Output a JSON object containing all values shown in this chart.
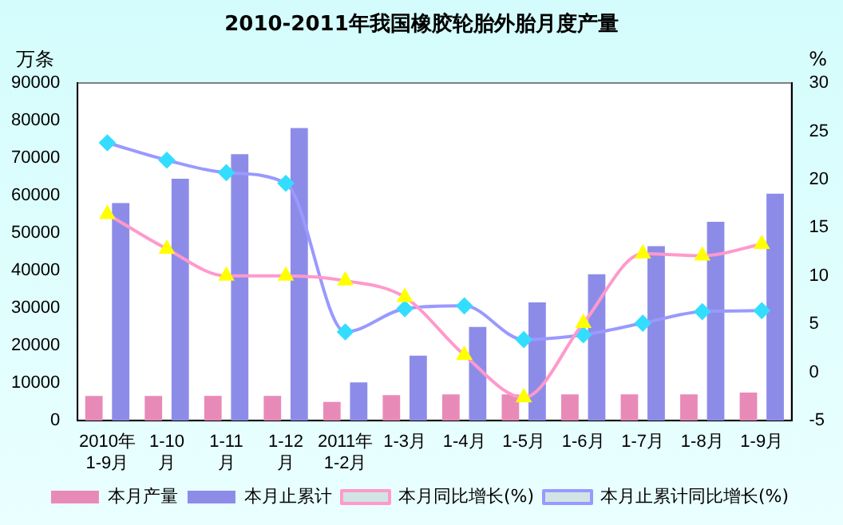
{
  "chart_data": {
    "type": "bar",
    "title": "2010-2011年我国橡胶轮胎外胎月度产量",
    "ylabel": "万条",
    "y2label": "%",
    "categories": [
      "2010年\n1-9月",
      "1-10\n月",
      "1-11\n月",
      "1-12\n月",
      "2011年\n1-2月",
      "1-3月",
      "1-4月",
      "1-5月",
      "1-6月",
      "1-7月",
      "1-8月",
      "1-9月"
    ],
    "series": [
      {
        "name": "本月产量",
        "color": "#e88ab8",
        "values": [
          6600,
          6600,
          6600,
          6600,
          5000,
          6800,
          7000,
          7000,
          7000,
          7000,
          7000,
          7500
        ]
      },
      {
        "name": "本月止累计",
        "color": "#8c8ce8",
        "values": [
          58000,
          64500,
          71000,
          78000,
          10200,
          17300,
          25000,
          31500,
          39000,
          46500,
          53000,
          60500
        ]
      },
      {
        "name": "本月同比增长(%)",
        "type": "line",
        "axis": "y2",
        "color": "#ff99cc",
        "marker": "triangle",
        "values": [
          16.4,
          12.8,
          10,
          10,
          9.5,
          7.8,
          1.8,
          -2.6,
          5.1,
          12.3,
          12.1,
          13.3
        ]
      },
      {
        "name": "本月止累计同比增长(%)",
        "type": "line",
        "axis": "y2",
        "color": "#9999ff",
        "marker": "diamond",
        "values": [
          23.8,
          22,
          20.7,
          19.6,
          4.2,
          6.6,
          6.9,
          3.4,
          3.9,
          5.1,
          6.3,
          6.4
        ]
      }
    ],
    "ylim": [
      0,
      90000
    ],
    "yticks": [
      0,
      10000,
      20000,
      30000,
      40000,
      50000,
      60000,
      70000,
      80000,
      90000
    ],
    "y2lim": [
      -5,
      30
    ],
    "y2ticks": [
      -5,
      0,
      5,
      10,
      15,
      20,
      25,
      30
    ],
    "grid": false,
    "legend": "bottom"
  }
}
